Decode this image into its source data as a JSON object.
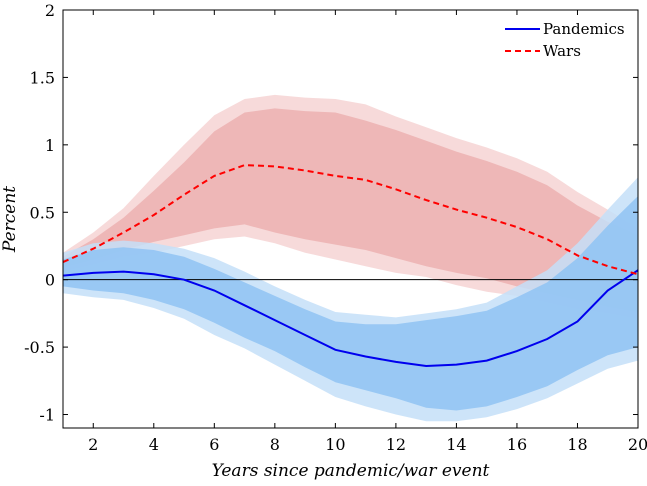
{
  "chart_data": {
    "type": "line",
    "title": "",
    "xlabel": "Years since pandemic/war event",
    "ylabel": "Percent",
    "xlim": [
      1,
      20
    ],
    "ylim": [
      -1.1,
      2
    ],
    "x_ticks": [
      2,
      4,
      6,
      8,
      10,
      12,
      14,
      16,
      18,
      20
    ],
    "y_ticks": [
      -1,
      -0.5,
      0,
      0.5,
      1,
      1.5,
      2
    ],
    "y_tick_labels": [
      "-1",
      "-0.5",
      "0",
      "0.5",
      "1",
      "1.5",
      "2"
    ],
    "x": [
      1,
      2,
      3,
      4,
      5,
      6,
      7,
      8,
      9,
      10,
      11,
      12,
      13,
      14,
      15,
      16,
      17,
      18,
      19,
      20
    ],
    "legend": {
      "position": "top-right"
    },
    "grid": false,
    "zero_line": true,
    "series": [
      {
        "name": "Pandemics",
        "color": "#0000ee",
        "band_inner_color": "#8fc3f3",
        "band_outer_color": "#c4dff8",
        "line_style": "solid",
        "values": [
          0.03,
          0.05,
          0.06,
          0.04,
          0.0,
          -0.08,
          -0.19,
          -0.3,
          -0.41,
          -0.52,
          -0.57,
          -0.61,
          -0.64,
          -0.63,
          -0.6,
          -0.53,
          -0.44,
          -0.31,
          -0.08,
          0.07
        ],
        "inner_upper": [
          0.15,
          0.22,
          0.24,
          0.22,
          0.17,
          0.08,
          -0.02,
          -0.12,
          -0.22,
          -0.31,
          -0.33,
          -0.33,
          -0.3,
          -0.27,
          -0.23,
          -0.13,
          -0.02,
          0.16,
          0.4,
          0.62
        ],
        "inner_lower": [
          -0.05,
          -0.08,
          -0.1,
          -0.15,
          -0.22,
          -0.32,
          -0.43,
          -0.53,
          -0.65,
          -0.76,
          -0.82,
          -0.88,
          -0.95,
          -0.97,
          -0.94,
          -0.87,
          -0.79,
          -0.67,
          -0.56,
          -0.5
        ],
        "outer_upper": [
          0.2,
          0.27,
          0.29,
          0.27,
          0.23,
          0.16,
          0.06,
          -0.05,
          -0.15,
          -0.24,
          -0.26,
          -0.28,
          -0.25,
          -0.22,
          -0.17,
          -0.05,
          0.07,
          0.27,
          0.52,
          0.76
        ],
        "outer_lower": [
          -0.1,
          -0.13,
          -0.15,
          -0.21,
          -0.29,
          -0.41,
          -0.51,
          -0.63,
          -0.75,
          -0.87,
          -0.94,
          -1.0,
          -1.05,
          -1.05,
          -1.02,
          -0.96,
          -0.88,
          -0.77,
          -0.66,
          -0.6
        ]
      },
      {
        "name": "Wars",
        "color": "#ff0000",
        "band_inner_color": "#ecb0b0",
        "band_outer_color": "#f6d3d3",
        "line_style": "dashed",
        "values": [
          0.13,
          0.23,
          0.35,
          0.48,
          0.63,
          0.77,
          0.85,
          0.84,
          0.81,
          0.77,
          0.74,
          0.67,
          0.59,
          0.52,
          0.46,
          0.39,
          0.3,
          0.18,
          0.1,
          0.04
        ],
        "inner_upper": [
          0.17,
          0.3,
          0.46,
          0.66,
          0.87,
          1.1,
          1.24,
          1.27,
          1.25,
          1.24,
          1.18,
          1.11,
          1.03,
          0.95,
          0.88,
          0.8,
          0.7,
          0.55,
          0.43,
          0.33
        ],
        "inner_lower": [
          0.09,
          0.15,
          0.22,
          0.28,
          0.33,
          0.38,
          0.41,
          0.35,
          0.3,
          0.26,
          0.22,
          0.16,
          0.1,
          0.05,
          0.01,
          -0.05,
          -0.1,
          -0.15,
          -0.2,
          -0.24
        ],
        "outer_upper": [
          0.2,
          0.35,
          0.53,
          0.77,
          1.0,
          1.22,
          1.34,
          1.37,
          1.35,
          1.34,
          1.3,
          1.21,
          1.13,
          1.05,
          0.98,
          0.9,
          0.8,
          0.65,
          0.52,
          0.38
        ],
        "outer_lower": [
          0.06,
          0.11,
          0.17,
          0.2,
          0.25,
          0.3,
          0.32,
          0.27,
          0.2,
          0.15,
          0.1,
          0.05,
          0.02,
          -0.04,
          -0.09,
          -0.12,
          -0.17,
          -0.22,
          -0.25,
          -0.29
        ]
      }
    ]
  }
}
